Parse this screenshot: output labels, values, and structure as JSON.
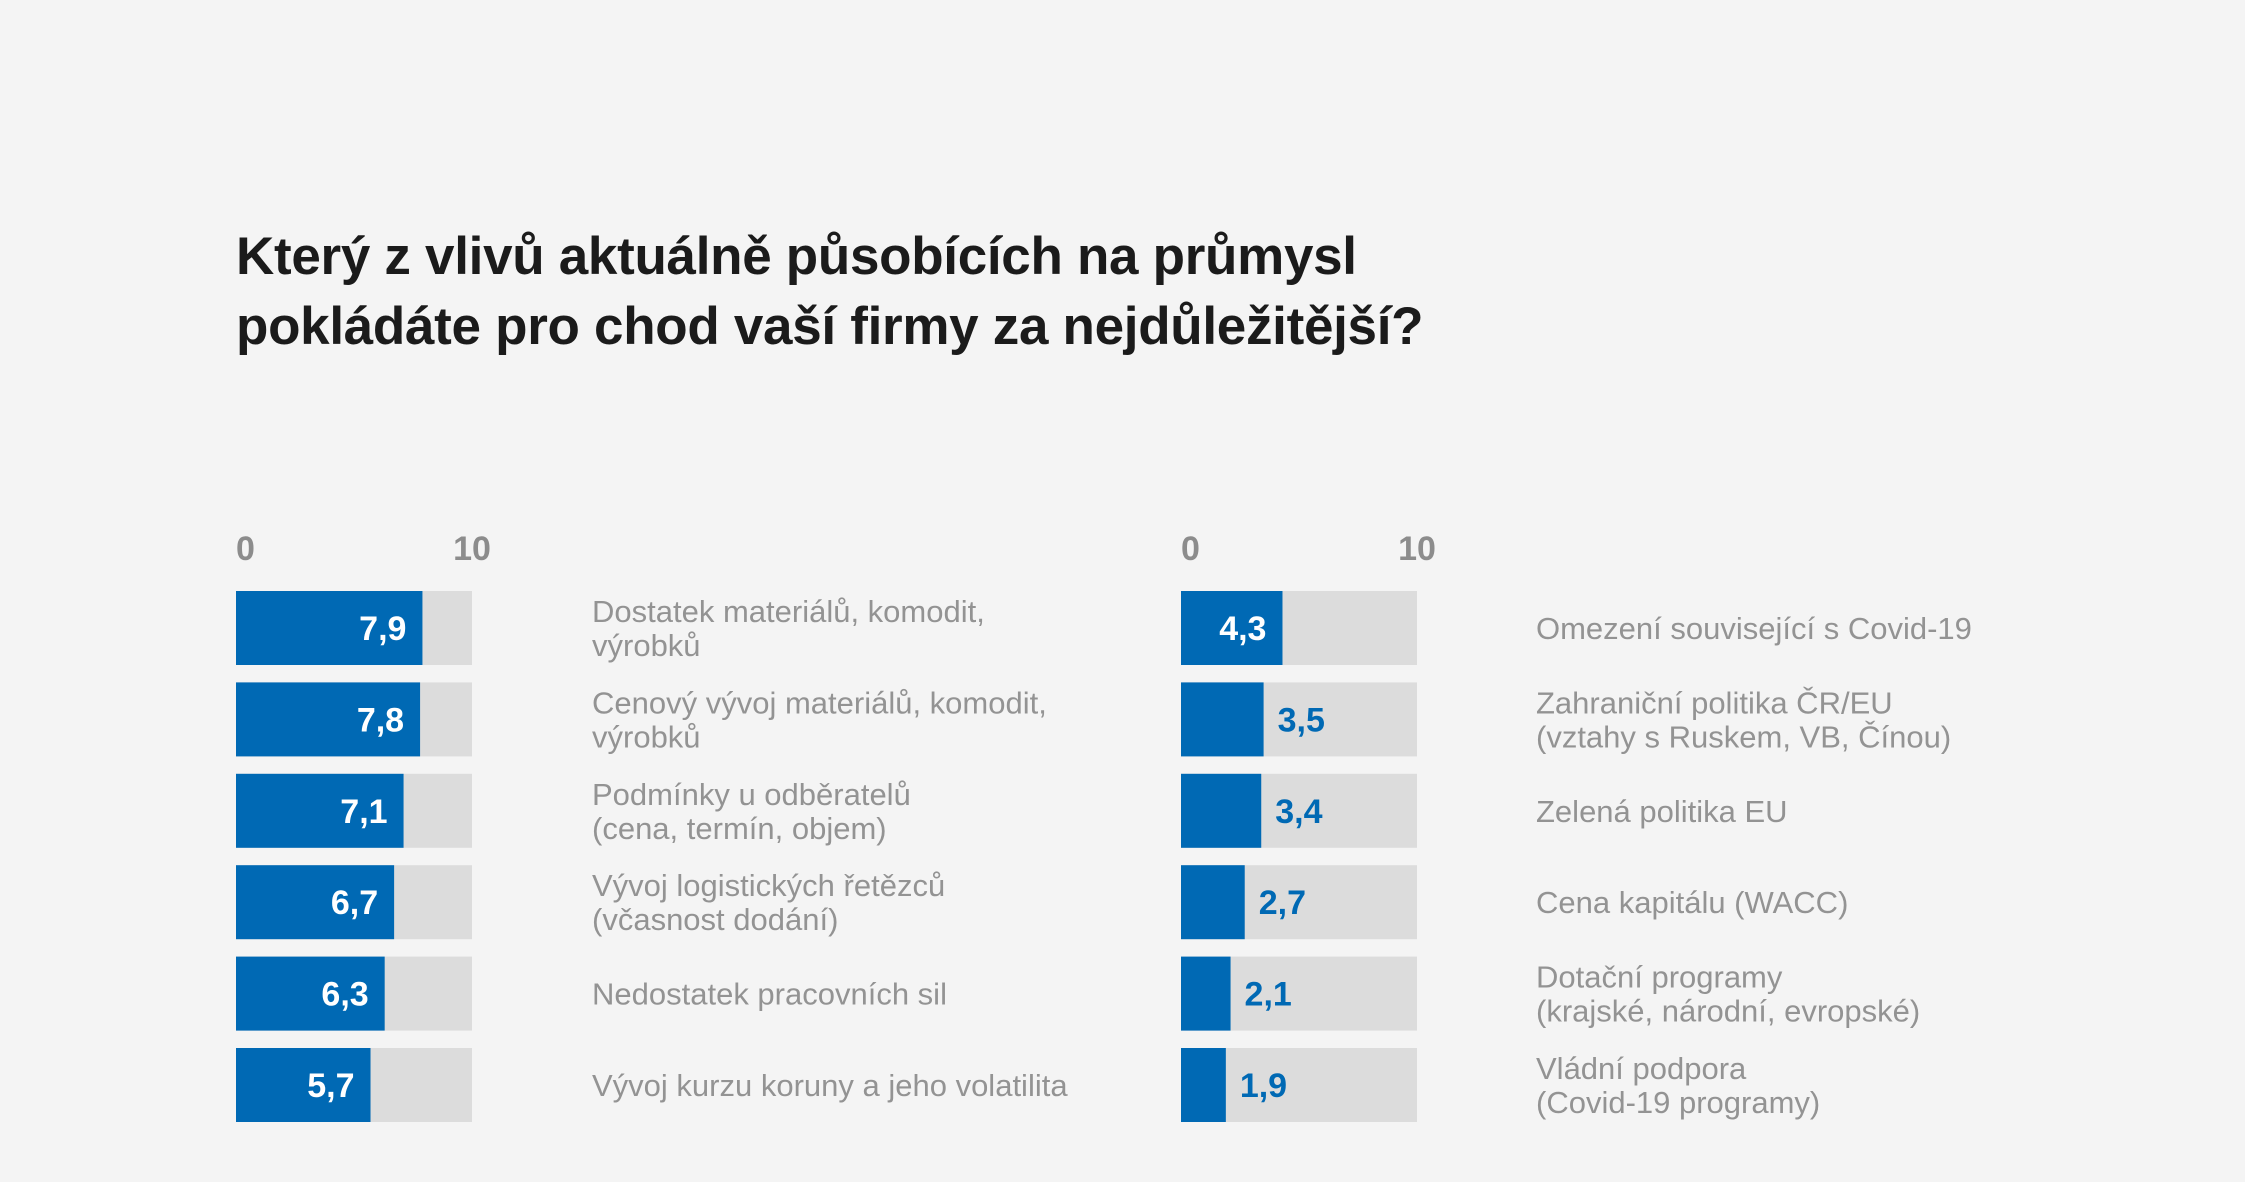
{
  "title": "Který z vlivů aktuálně působících na průmysl\npokládáte pro chod vaší firmy za nejdůležitější?",
  "colors": {
    "background": "#f4f4f4",
    "bar": "#0069b4",
    "track": "#dcdcdc",
    "label_inside": "#ffffff",
    "label_outside": "#0069b4",
    "category_text": "#939393",
    "tick_text": "#8c8c8c"
  },
  "chart_data": [
    {
      "type": "bar",
      "orientation": "horizontal",
      "xlim": [
        0,
        10
      ],
      "ticks": [
        "0",
        "10"
      ],
      "categories": [
        "Dostatek materiálů, komodit,\nvýrobků",
        "Cenový vývoj materiálů, komodit,\nvýrobků",
        "Podmínky u odběratelů\n(cena, termín, objem)",
        "Vývoj logistických řetězců\n(včasnost dodání)",
        "Nedostatek pracovních sil",
        "Vývoj kurzu koruny a jeho volatilita"
      ],
      "values": [
        7.9,
        7.8,
        7.1,
        6.7,
        6.3,
        5.7
      ],
      "value_labels": [
        "7,9",
        "7,8",
        "7,1",
        "6,7",
        "6,3",
        "5,7"
      ]
    },
    {
      "type": "bar",
      "orientation": "horizontal",
      "xlim": [
        0,
        10
      ],
      "ticks": [
        "0",
        "10"
      ],
      "categories": [
        "Omezení související s Covid-19",
        "Zahraniční politika ČR/EU\n(vztahy s Ruskem, VB, Čínou)",
        "Zelená politika EU",
        "Cena kapitálu (WACC)",
        "Dotační programy\n(krajské, národní, evropské)",
        "Vládní podpora\n(Covid-19 programy)"
      ],
      "values": [
        4.3,
        3.5,
        3.4,
        2.7,
        2.1,
        1.9
      ],
      "value_labels": [
        "4,3",
        "3,5",
        "3,4",
        "2,7",
        "2,1",
        "1,9"
      ]
    }
  ]
}
